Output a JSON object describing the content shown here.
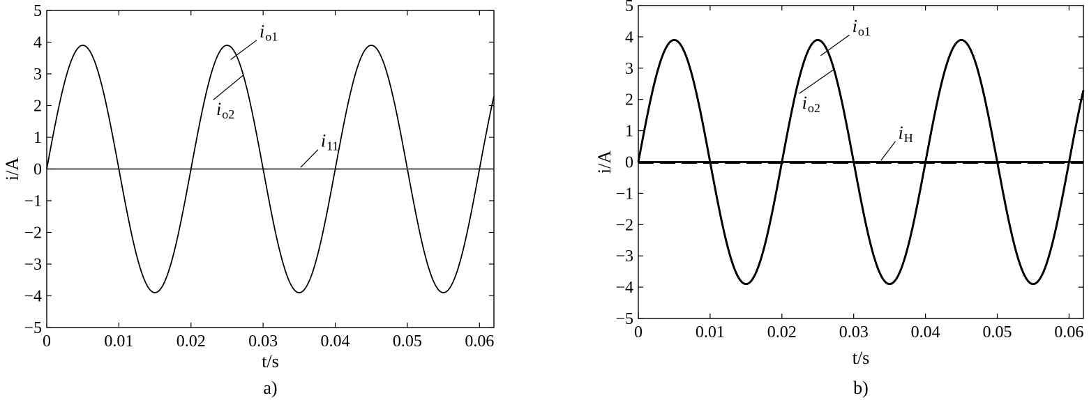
{
  "chart_data": [
    {
      "type": "line",
      "panel_label": "a)",
      "xlabel": "t/s",
      "ylabel": "i/A",
      "xlim": [
        0,
        0.062
      ],
      "ylim": [
        -5,
        5
      ],
      "xticks": [
        0,
        0.01,
        0.02,
        0.03,
        0.04,
        0.05,
        0.06
      ],
      "xtick_labels": [
        "0",
        "0.01",
        "0.02",
        "0.03",
        "0.04",
        "0.05",
        "0.06"
      ],
      "yticks": [
        5,
        4,
        3,
        2,
        1,
        0,
        -1,
        -2,
        -3,
        -4,
        -5
      ],
      "ytick_labels": [
        "5",
        "4",
        "3",
        "2",
        "1",
        "0",
        "−1",
        "−2",
        "−3",
        "−4",
        "−5"
      ],
      "series": [
        {
          "label_main": "i",
          "label_sub": "o1",
          "amplitude": 3.9,
          "frequency_hz": 50,
          "x_start": 0,
          "x_end": 0.062
        },
        {
          "label_main": "i",
          "label_sub": "o2",
          "amplitude": 3.9,
          "frequency_hz": 50,
          "x_start": 0,
          "x_end": 0.062
        },
        {
          "label_main": "i",
          "label_sub": "11",
          "amplitude": 0.0,
          "frequency_hz": 50,
          "x_start": 0,
          "x_end": 0.062
        }
      ],
      "annotations": [
        {
          "target_series": 0,
          "x": 0.0255,
          "y": 3.45,
          "label_x": 0.0295,
          "label_y": 4.15
        },
        {
          "target_series": 1,
          "x": 0.0272,
          "y": 2.95,
          "label_x": 0.0235,
          "label_y": 1.7
        },
        {
          "target_series": 2,
          "x": 0.0352,
          "y": 0.05,
          "label_x": 0.038,
          "label_y": 0.7
        }
      ]
    },
    {
      "type": "line",
      "panel_label": "b)",
      "xlabel": "t/s",
      "ylabel": "i/A",
      "xlim": [
        0,
        0.062
      ],
      "ylim": [
        -5,
        5
      ],
      "xticks": [
        0,
        0.01,
        0.02,
        0.03,
        0.04,
        0.05,
        0.06
      ],
      "xtick_labels": [
        "0",
        "0.01",
        "0.02",
        "0.03",
        "0.04",
        "0.05",
        "0.06"
      ],
      "yticks": [
        5,
        4,
        3,
        2,
        1,
        0,
        -1,
        -2,
        -3,
        -4,
        -5
      ],
      "ytick_labels": [
        "5",
        "4",
        "3",
        "2",
        "1",
        "0",
        "−1",
        "−2",
        "−3",
        "−4",
        "−5"
      ],
      "series": [
        {
          "label_main": "i",
          "label_sub": "o1",
          "amplitude": 3.9,
          "frequency_hz": 50,
          "x_start": 0,
          "x_end": 0.062
        },
        {
          "label_main": "i",
          "label_sub": "o2",
          "amplitude": 3.9,
          "frequency_hz": 50,
          "x_start": 0,
          "x_end": 0.062
        },
        {
          "label_main": "i",
          "label_sub": "H",
          "amplitude": 0.0,
          "frequency_hz": 50,
          "x_start": 0,
          "x_end": 0.062
        }
      ],
      "annotations": [
        {
          "target_series": 0,
          "x": 0.0254,
          "y": 3.4,
          "label_x": 0.0298,
          "label_y": 4.15
        },
        {
          "target_series": 1,
          "x": 0.0272,
          "y": 2.95,
          "label_x": 0.0228,
          "label_y": 1.7
        },
        {
          "target_series": 2,
          "x": 0.0338,
          "y": 0.05,
          "label_x": 0.0362,
          "label_y": 0.75
        }
      ]
    }
  ]
}
